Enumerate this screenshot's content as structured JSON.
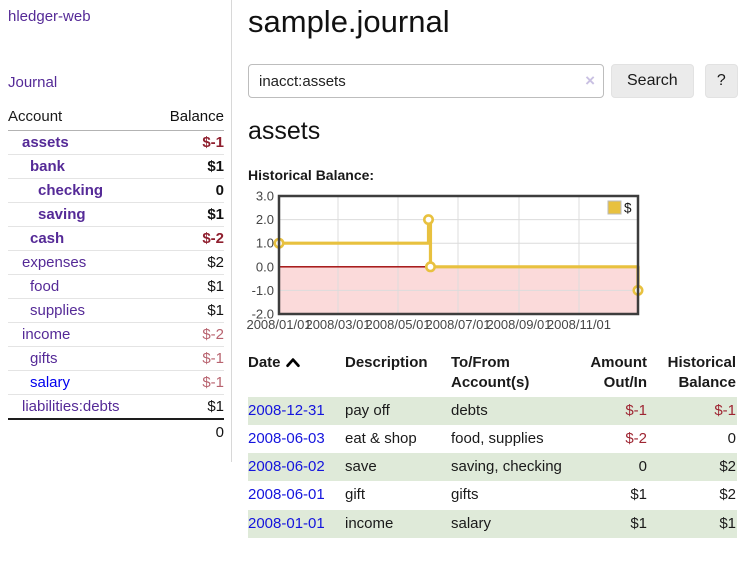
{
  "app": {
    "brand": "hledger-web",
    "nav_journal": "Journal"
  },
  "colors": {
    "link_purple": "#552a97",
    "link_blue": "#0000ee",
    "negative_strong": "#8f1f2e",
    "negative_soft": "#b8636f",
    "row_green": "#dfead9",
    "series_gold": "#e8c13f"
  },
  "sidebar": {
    "account_header": "Account",
    "balance_header": "Balance",
    "accounts": [
      {
        "name": "assets",
        "balance": "$-1"
      },
      {
        "name": "bank",
        "balance": "$1"
      },
      {
        "name": "checking",
        "balance": "0"
      },
      {
        "name": "saving",
        "balance": "$1"
      },
      {
        "name": "cash",
        "balance": "$-2"
      },
      {
        "name": "expenses",
        "balance": "$2"
      },
      {
        "name": "food",
        "balance": "$1"
      },
      {
        "name": "supplies",
        "balance": "$1"
      },
      {
        "name": "income",
        "balance": "$-2"
      },
      {
        "name": "gifts",
        "balance": "$-1"
      },
      {
        "name": "salary",
        "balance": "$-1"
      },
      {
        "name": "liabilities:debts",
        "balance": "$1"
      }
    ],
    "total": "0"
  },
  "main": {
    "title": "sample.journal",
    "search": {
      "value": "inacct:assets",
      "clear_label": "×",
      "button": "Search",
      "help_button": "?"
    },
    "account_heading": "assets"
  },
  "chart_data": {
    "type": "line",
    "step": true,
    "title": "Historical Balance:",
    "x_range": [
      "2008-01-01",
      "2008-12-31"
    ],
    "x_ticks": [
      {
        "date": "2008-01-01",
        "label": "2008/01/01"
      },
      {
        "date": "2008-03-01",
        "label": "2008/03/01"
      },
      {
        "date": "2008-05-01",
        "label": "2008/05/01"
      },
      {
        "date": "2008-07-01",
        "label": "2008/07/01"
      },
      {
        "date": "2008-09-01",
        "label": "2008/09/01"
      },
      {
        "date": "2008-11-01",
        "label": "2008/11/01"
      }
    ],
    "y_ticks": [
      3,
      2,
      1,
      0,
      -1,
      -2
    ],
    "ylim": [
      -2,
      3
    ],
    "series": [
      {
        "name": "$",
        "color": "#e8c13f",
        "points": [
          [
            "2008-01-01",
            1
          ],
          [
            "2008-06-01",
            2
          ],
          [
            "2008-06-03",
            0
          ],
          [
            "2008-12-31",
            -1
          ]
        ]
      }
    ],
    "legend_position": "top-right",
    "grid_color": "#dcdcdc",
    "border_color": "#3d3d3d",
    "zero_line_color": "#9e0000",
    "negative_region_color": "#fbdada",
    "tick_label_color": "#464646"
  },
  "register": {
    "headers": {
      "date": "Date",
      "description": "Description",
      "accounts": "To/From Account(s)",
      "amount": "Amount Out/In",
      "balance": "Historical Balance"
    },
    "rows": [
      {
        "date": "2008-12-31",
        "description": "pay off",
        "accounts": "debts",
        "amount": "$-1",
        "balance": "$-1"
      },
      {
        "date": "2008-06-03",
        "description": "eat & shop",
        "accounts": "food, supplies",
        "amount": "$-2",
        "balance": "0"
      },
      {
        "date": "2008-06-02",
        "description": "save",
        "accounts": "saving, checking",
        "amount": "0",
        "balance": "$2"
      },
      {
        "date": "2008-06-01",
        "description": "gift",
        "accounts": "gifts",
        "amount": "$1",
        "balance": "$2"
      },
      {
        "date": "2008-01-01",
        "description": "income",
        "accounts": "salary",
        "amount": "$1",
        "balance": "$1"
      }
    ]
  }
}
